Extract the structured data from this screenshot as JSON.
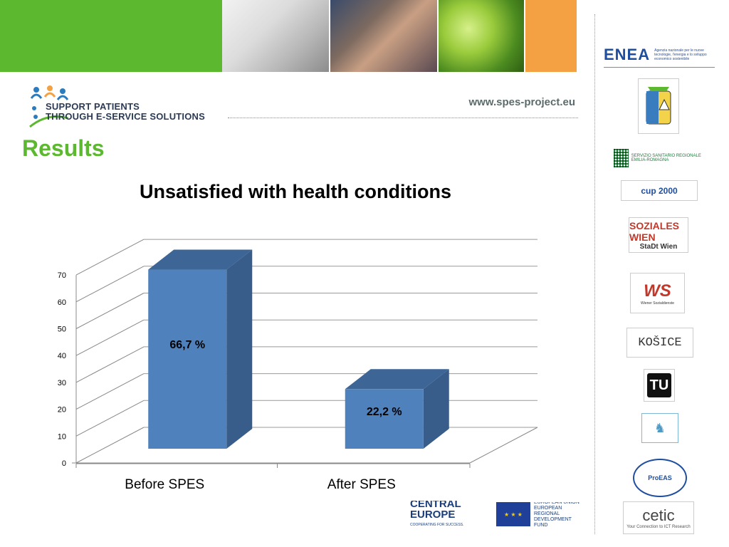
{
  "header": {
    "url": "www.spes-project.eu",
    "brand_line1": "SUPPORT PATIENTS",
    "brand_line2": "THROUGH E-SERVICE SOLUTIONS"
  },
  "section_title": "Results",
  "colors": {
    "green": "#5cb82e",
    "orange": "#f4a144",
    "bar_front": "#4f81bd",
    "bar_side": "#385d8a",
    "bar_top": "#3d6596"
  },
  "chart_data": {
    "type": "bar",
    "title": "Unsatisfied with health conditions",
    "categories": [
      "Before SPES",
      "After SPES"
    ],
    "values": [
      66.7,
      22.2
    ],
    "data_labels": [
      "66,7 %",
      "22,2 %"
    ],
    "ylim": [
      0,
      70
    ],
    "yticks": [
      "0",
      "10",
      "20",
      "30",
      "40",
      "50",
      "60",
      "70"
    ],
    "grid": true,
    "style": "3d-column"
  },
  "partner_logos": {
    "enea": "ENEA",
    "enea_tagline": "Agenzia nazionale per le nuove tecnologie, l'energia e lo sviluppo economico sostenibile",
    "ssr": "SERVIZIO SANITARIO REGIONALE EMILIA-ROMAGNA",
    "cup": "cup 2000",
    "soziales_wien": "SOZIALES WIEN",
    "stadt_wien": "StaDt Wien",
    "ws": "WS",
    "ws_sub": "Wiener Sozialdienste",
    "kosice": "KOŠICE",
    "proeas": "ProEAS",
    "cetic": "cetic",
    "cetic_sub": "Your Connection to ICT Research",
    "central_europe": "CENTRAL EUROPE",
    "central_europe_sub": "COOPERATING FOR SUCCESS.",
    "eu_text": "EUROPEAN UNION EUROPEAN REGIONAL DEVELOPMENT FUND"
  }
}
